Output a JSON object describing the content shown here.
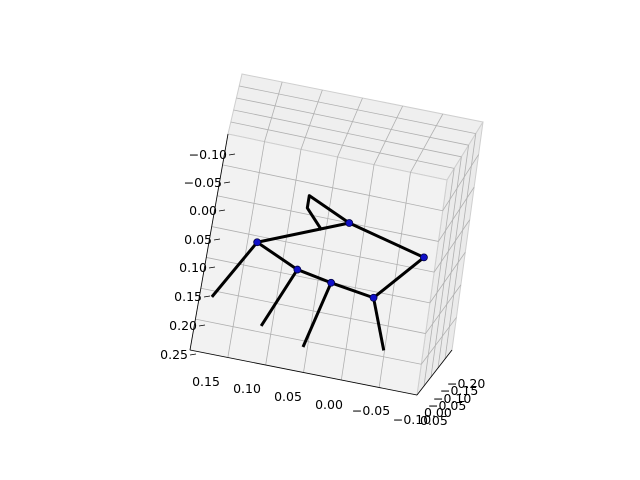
{
  "chart_data": {
    "type": "line",
    "projection": "3d",
    "title": "",
    "xlabel": "",
    "ylabel": "",
    "zlabel": "",
    "grid": true,
    "axes": {
      "left": {
        "ticks": [
          "−0.10",
          "−0.05",
          "0.00",
          "0.05",
          "0.10",
          "0.15",
          "0.20",
          "0.25"
        ]
      },
      "bottom": {
        "ticks": [
          "0.15",
          "0.10",
          "0.05",
          "0.00",
          "−0.05",
          "−0.10"
        ]
      },
      "right": {
        "ticks": [
          "−0.20",
          "−0.15",
          "−0.10",
          "−0.05",
          "0.00",
          "0.05"
        ]
      }
    },
    "colors": {
      "bone": "#000000",
      "joint": "#1010c8",
      "pane": "#f2f2f2",
      "grid": "#b0b0b0"
    },
    "series": [
      {
        "marker": "joint",
        "joints": [
          {
            "id": "j1",
            "x": 0.0,
            "y": 0.0
          },
          {
            "id": "j2",
            "x": 0.1,
            "y": 0.06
          },
          {
            "id": "j3",
            "x": 0.05,
            "y": 0.09
          },
          {
            "id": "j4",
            "x": 0.01,
            "y": 0.1
          },
          {
            "id": "j5",
            "x": -0.04,
            "y": 0.11
          },
          {
            "id": "j6",
            "x": -0.09,
            "y": 0.03
          }
        ],
        "bones": [
          [
            "j1",
            "j2"
          ],
          [
            "j2",
            "j3"
          ],
          [
            "j3",
            "j4"
          ],
          [
            "j4",
            "j5"
          ],
          [
            "j5",
            "j6"
          ],
          [
            "j6",
            "j1"
          ]
        ]
      },
      {
        "marker": "none",
        "limbs": [
          {
            "name": "neck-loop",
            "points": [
              [
                0.0,
                0.0
              ],
              [
                0.05,
                -0.03
              ],
              [
                0.05,
                -0.01
              ],
              [
                0.03,
                0.02
              ]
            ]
          },
          {
            "name": "leg-1",
            "points": [
              [
                0.1,
                0.06
              ],
              [
                0.14,
                0.16
              ]
            ]
          },
          {
            "name": "leg-2",
            "points": [
              [
                0.05,
                0.09
              ],
              [
                0.08,
                0.19
              ]
            ]
          },
          {
            "name": "leg-3",
            "points": [
              [
                0.01,
                0.1
              ],
              [
                0.03,
                0.21
              ]
            ]
          },
          {
            "name": "leg-4",
            "points": [
              [
                -0.04,
                0.11
              ],
              [
                -0.06,
                0.19
              ]
            ]
          }
        ]
      }
    ]
  }
}
